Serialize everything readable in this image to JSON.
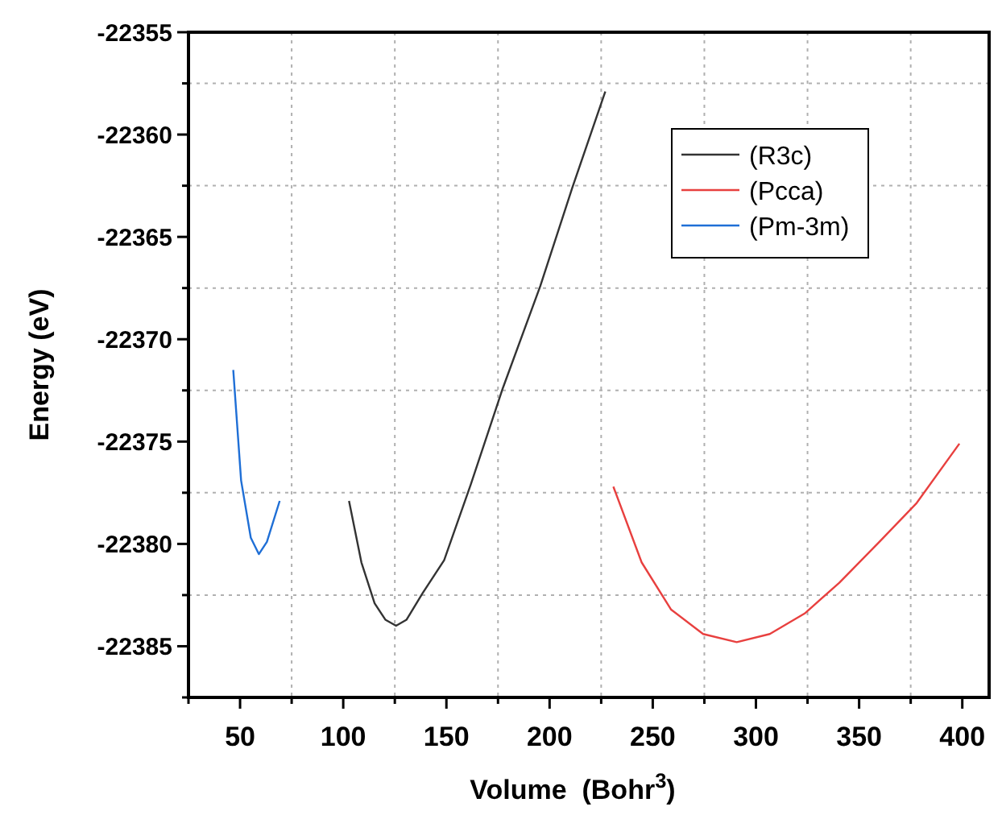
{
  "chart_data": {
    "type": "line",
    "xlabel": "Volume  (Bohr$^{3}$)",
    "ylabel": "Energy (eV)",
    "xlim": [
      25,
      413
    ],
    "ylim": [
      -22387.5,
      -22355
    ],
    "xticks": [
      {
        "value": 25,
        "label": null
      },
      50,
      {
        "value": 75,
        "label": null
      },
      100,
      {
        "value": 125,
        "label": null
      },
      150,
      {
        "value": 175,
        "label": null
      },
      200,
      {
        "value": 225,
        "label": null
      },
      250,
      {
        "value": 275,
        "label": null
      },
      300,
      {
        "value": 325,
        "label": null
      },
      350,
      {
        "value": 375,
        "label": null
      },
      400
    ],
    "yticks": [
      {
        "value": -22387.5,
        "label": null
      },
      -22385,
      {
        "value": -22382.5,
        "label": null
      },
      -22380,
      {
        "value": -22377.5,
        "label": null
      },
      -22375,
      {
        "value": -22372.5,
        "label": null
      },
      -22370,
      {
        "value": -22367.5,
        "label": null
      },
      -22365,
      {
        "value": -22362.5,
        "label": null
      },
      -22360,
      {
        "value": -22357.5,
        "label": null
      },
      -22355
    ],
    "grid": true,
    "legend": "top right",
    "marker": "none",
    "line_style": "solid",
    "series": [
      {
        "name": "(R3c)",
        "color": "#333333",
        "x": [
          102.8,
          108.8,
          115.2,
          120.4,
          125.6,
          130.7,
          138.5,
          148.9,
          161.8,
          177.3,
          195.5,
          211,
          227
        ],
        "values": [
          -22377.9,
          -22380.9,
          -22382.9,
          -22383.7,
          -22384.0,
          -22383.7,
          -22382.4,
          -22380.8,
          -22377.1,
          -22372.4,
          -22367.4,
          -22362.6,
          -22357.9
        ]
      },
      {
        "name": "(Pcca)",
        "color": "#e8403f",
        "x": [
          230.9,
          244.6,
          258.8,
          274.4,
          290.7,
          306.7,
          323.6,
          340.4,
          359.8,
          377.9,
          398.6
        ],
        "values": [
          -22377.2,
          -22380.9,
          -22383.2,
          -22384.4,
          -22384.8,
          -22384.4,
          -22383.4,
          -22381.9,
          -22379.9,
          -22378.0,
          -22375.1
        ]
      },
      {
        "name": "(Pm-3m)",
        "color": "#1f6fd6",
        "x": [
          46.7,
          50.5,
          55.2,
          59.1,
          63,
          69.2
        ],
        "values": [
          -22371.5,
          -22376.9,
          -22379.7,
          -22380.5,
          -22379.9,
          -22377.9
        ]
      }
    ]
  }
}
